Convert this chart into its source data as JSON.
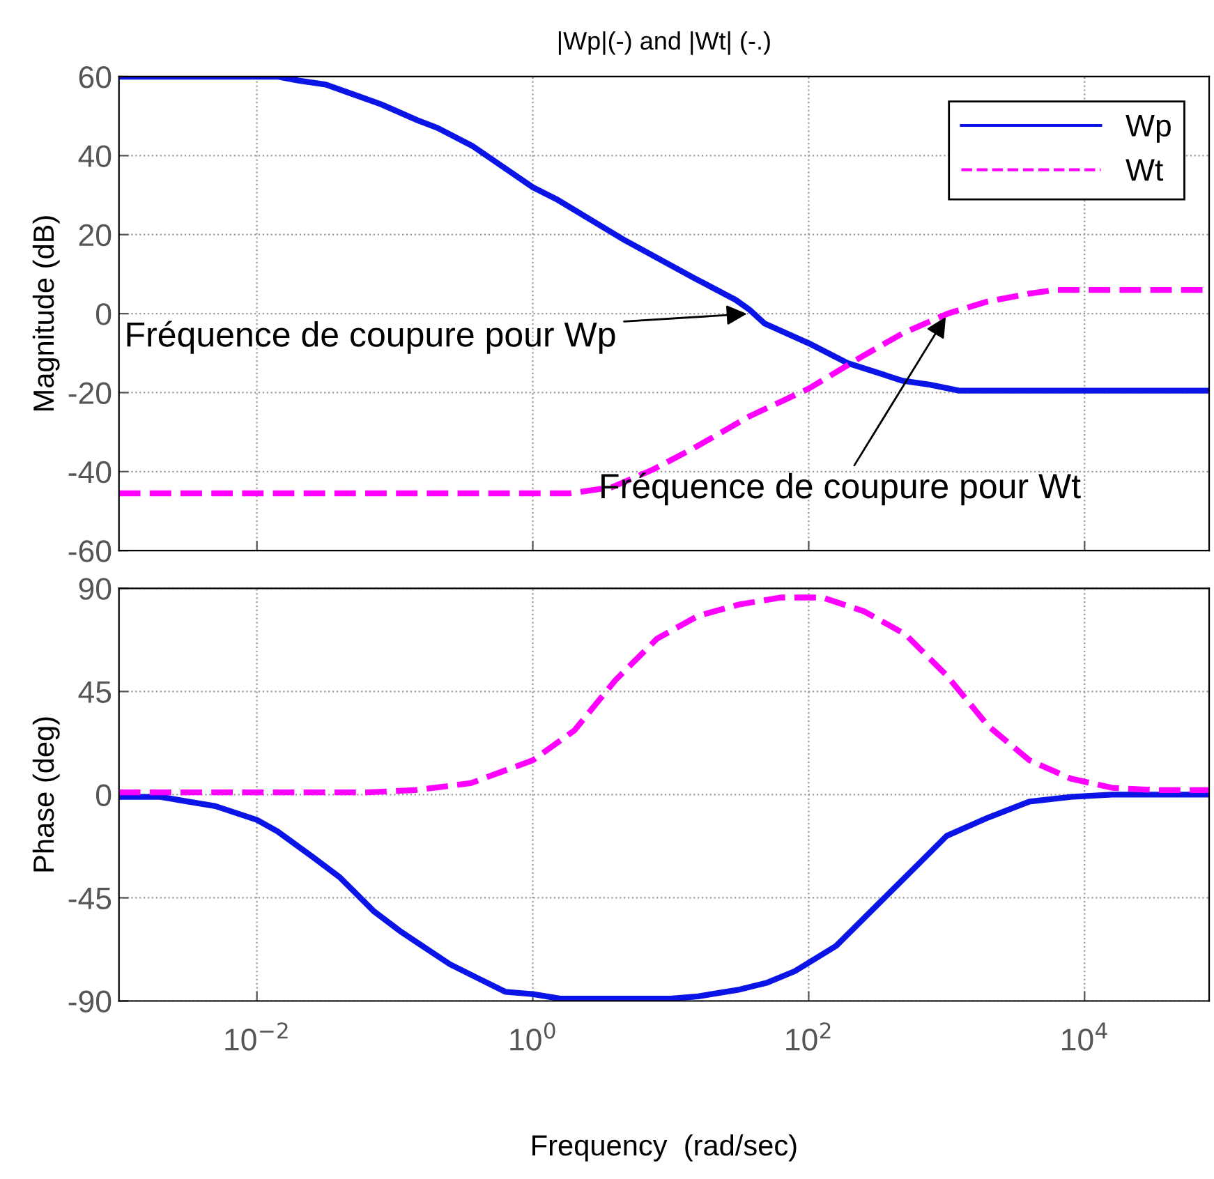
{
  "chart_data": [
    {
      "type": "line",
      "title": "|Wp|(-) and |Wt| (-.)",
      "ylabel": "Magnitude (dB)",
      "log": "x",
      "xlim": [
        0.001,
        80000
      ],
      "xticks": [
        {
          "value": 0.01,
          "label": null
        },
        {
          "value": 1,
          "label": null
        },
        {
          "value": 100,
          "label": null
        },
        {
          "value": 10000,
          "label": null
        }
      ],
      "ylim": [
        -60,
        60
      ],
      "yticks": [
        -60,
        -40,
        -20,
        0,
        20,
        40,
        60
      ],
      "tick_labels": "y",
      "grid": true,
      "legend": "top right",
      "series": [
        {
          "name": "Wp",
          "color": "#0a14e6",
          "line_style": "solid",
          "x": [
            0.001,
            0.0141,
            0.02,
            0.0316,
            0.0794,
            0.145,
            0.204,
            0.363,
            1,
            1.48,
            4.68,
            14.8,
            29.5,
            37.2,
            47.9,
            100,
            191,
            479,
            759,
            1230,
            80000
          ],
          "values": [
            60,
            60,
            59,
            58,
            53,
            49,
            47,
            42.5,
            32,
            29,
            18.5,
            9,
            3.5,
            1,
            -2.5,
            -7.5,
            -12.5,
            -17,
            -18,
            -19.5,
            -19.5
          ]
        },
        {
          "name": "Wt",
          "color": "#ff00ff",
          "line_style": "dashed",
          "x": [
            0.001,
            1.86,
            3.72,
            7.41,
            14.8,
            37.2,
            100,
            240,
            479,
            1020,
            1950,
            3890,
            6170,
            80000
          ],
          "values": [
            -45.5,
            -45.5,
            -44,
            -39.5,
            -34,
            -26,
            -19,
            -11,
            -5,
            0,
            3,
            5,
            6,
            6
          ]
        }
      ],
      "annotations": [
        {
          "text": "Fréquence de coupure pour Wp",
          "x": 38,
          "y": 0
        },
        {
          "text": "Fréquence de coupure pour Wt",
          "x": 1020,
          "y": 0
        }
      ]
    },
    {
      "type": "line",
      "xlabel": "Frequency  (rad/sec)",
      "ylabel": "Phase (deg)",
      "log": "x",
      "xlim": [
        0.001,
        80000
      ],
      "xticks": [
        {
          "value": 0.01,
          "label": "10$^{−2}$"
        },
        {
          "value": 1,
          "label": "10$^{0}$"
        },
        {
          "value": 100,
          "label": "10$^{2}$"
        },
        {
          "value": 10000,
          "label": "10$^{4}$"
        }
      ],
      "ylim": [
        -90,
        90
      ],
      "yticks": [
        -90,
        -45,
        0,
        45,
        90
      ],
      "grid": true,
      "series": [
        {
          "color": "#0a14e6",
          "line_style": "solid",
          "x": [
            0.001,
            0.002,
            0.005,
            0.01,
            0.0141,
            0.0251,
            0.0398,
            0.0708,
            0.112,
            0.158,
            0.251,
            0.398,
            0.631,
            1,
            1.58,
            10,
            15.8,
            31.6,
            50.1,
            79.4,
            158,
            316,
            631,
            1000,
            2000,
            3980,
            7940,
            15800,
            80000
          ],
          "values": [
            -1,
            -1,
            -5,
            -11,
            -16,
            -27,
            -36,
            -51,
            -60,
            -66,
            -74,
            -80,
            -86,
            -87,
            -89,
            -89,
            -88,
            -85,
            -82,
            -77,
            -66,
            -48,
            -30,
            -18,
            -10,
            -3,
            -1,
            0,
            0
          ]
        },
        {
          "color": "#ff00ff",
          "line_style": "dashed",
          "x": [
            0.001,
            0.0631,
            0.141,
            0.355,
            1,
            2,
            3.98,
            7.94,
            15.8,
            31.6,
            63.1,
            126,
            251,
            501,
            1000,
            2000,
            3980,
            7940,
            15800,
            31600,
            80000
          ],
          "values": [
            1,
            1,
            2,
            5,
            15,
            28,
            50,
            68,
            78,
            83,
            86,
            86,
            80,
            70,
            52,
            30,
            15,
            7,
            3,
            2,
            2
          ]
        }
      ]
    }
  ]
}
